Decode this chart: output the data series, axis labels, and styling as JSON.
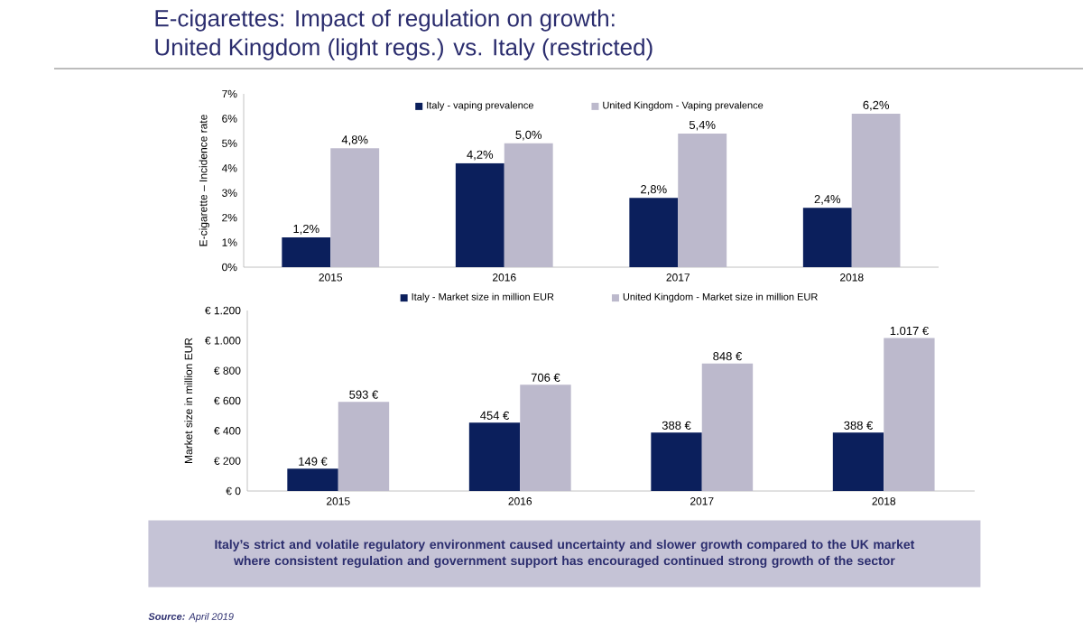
{
  "chart_data": [
    {
      "type": "bar",
      "title": "E-cigarettes: Impact of regulation on growth:",
      "subtitle": "United Kingdom (light regs.) vs. Italy (restricted)",
      "ylabel": "E-cigarette – Incidence rate",
      "categories": [
        "2015",
        "2016",
        "2017",
        "2018"
      ],
      "series": [
        {
          "name": "Italy - vaping prevalence",
          "color": "#0b1f5c",
          "values": [
            1.2,
            4.2,
            2.8,
            2.4
          ],
          "value_labels": [
            "1,2%",
            "4,2%",
            "2,8%",
            "2,4%"
          ]
        },
        {
          "name": "United Kingdom - Vaping prevalence",
          "color": "#bcb9cc",
          "values": [
            4.8,
            5.0,
            5.4,
            6.2
          ],
          "value_labels": [
            "4,8%",
            "5,0%",
            "5,4%",
            "6,2%"
          ]
        }
      ],
      "ylim": [
        0,
        7
      ],
      "yticks": [
        {
          "value": 0,
          "label": "0%"
        },
        {
          "value": 1,
          "label": "1%"
        },
        {
          "value": 2,
          "label": "2%"
        },
        {
          "value": 3,
          "label": "3%"
        },
        {
          "value": 4,
          "label": "4%"
        },
        {
          "value": 5,
          "label": "5%"
        },
        {
          "value": 6,
          "label": "6%"
        },
        {
          "value": 7,
          "label": "7%"
        }
      ],
      "legend": "top"
    },
    {
      "type": "bar",
      "ylabel": "Market size in million EUR",
      "categories": [
        "2015",
        "2016",
        "2017",
        "2018"
      ],
      "series": [
        {
          "name": "Italy - Market size in million EUR",
          "color": "#0b1f5c",
          "values": [
            149,
            454,
            388,
            388
          ],
          "value_labels": [
            "149 €",
            "454 €",
            "388 €",
            "388 €"
          ]
        },
        {
          "name": "United Kingdom - Market size in million EUR",
          "color": "#bcb9cc",
          "values": [
            593,
            706,
            848,
            1017
          ],
          "value_labels": [
            "593 €",
            "706 €",
            "848 €",
            "1.017 €"
          ]
        }
      ],
      "ylim": [
        0,
        1200
      ],
      "yticks": [
        {
          "value": 0,
          "label": "€ 0"
        },
        {
          "value": 200,
          "label": "€ 200"
        },
        {
          "value": 400,
          "label": "€ 400"
        },
        {
          "value": 600,
          "label": "€ 600"
        },
        {
          "value": 800,
          "label": "€ 800"
        },
        {
          "value": 1000,
          "label": "€ 1.000"
        },
        {
          "value": 1200,
          "label": "€ 1.200"
        }
      ],
      "legend": "top",
      "annotations": [
        "**Italy’s strict and volatile regulatory environment caused uncertainty and slower growth compared to the UK market where consistent regulation and government support has encouraged continued strong growth of the sector**",
        "**Source:** April 2019"
      ]
    }
  ]
}
